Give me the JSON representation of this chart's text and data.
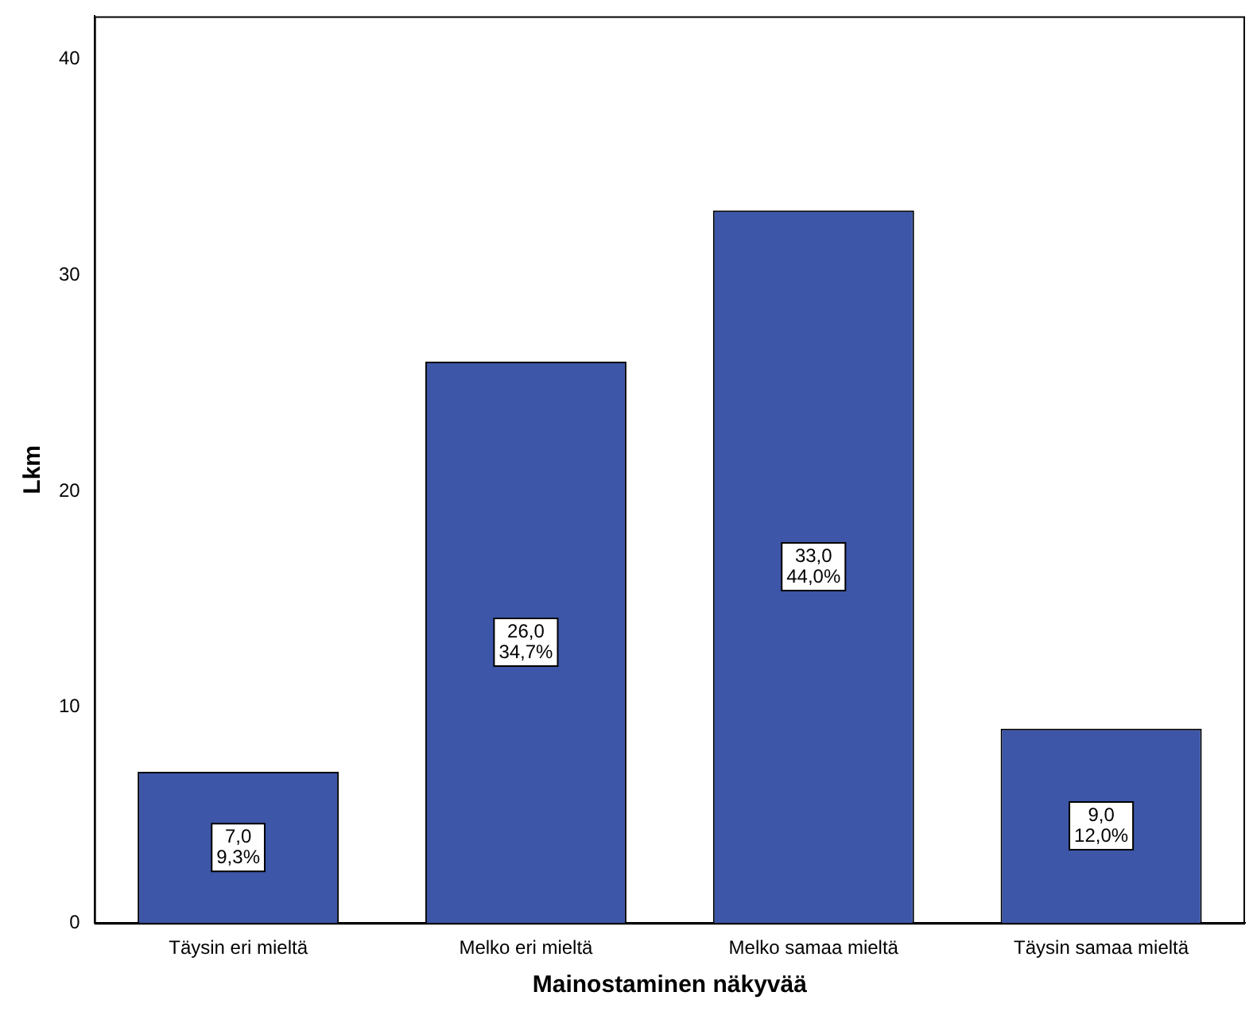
{
  "chart_data": {
    "type": "bar",
    "xlabel": "Mainostaminen näkyvää",
    "ylabel": "Lkm",
    "categories": [
      "Täysin eri mieltä",
      "Melko eri mieltä",
      "Melko samaa mieltä",
      "Täysin samaa mieltä"
    ],
    "values": [
      7,
      26,
      33,
      9
    ],
    "color": "#3d56a8",
    "value_labels": [
      "7,0\n9,3%",
      "26,0\n34,7%",
      "33,0\n44,0%",
      "9,0\n12,0%"
    ],
    "ylim": [
      0,
      42
    ],
    "yticks": [
      0,
      10,
      20,
      30,
      40
    ],
    "grid": false,
    "legend": false
  }
}
